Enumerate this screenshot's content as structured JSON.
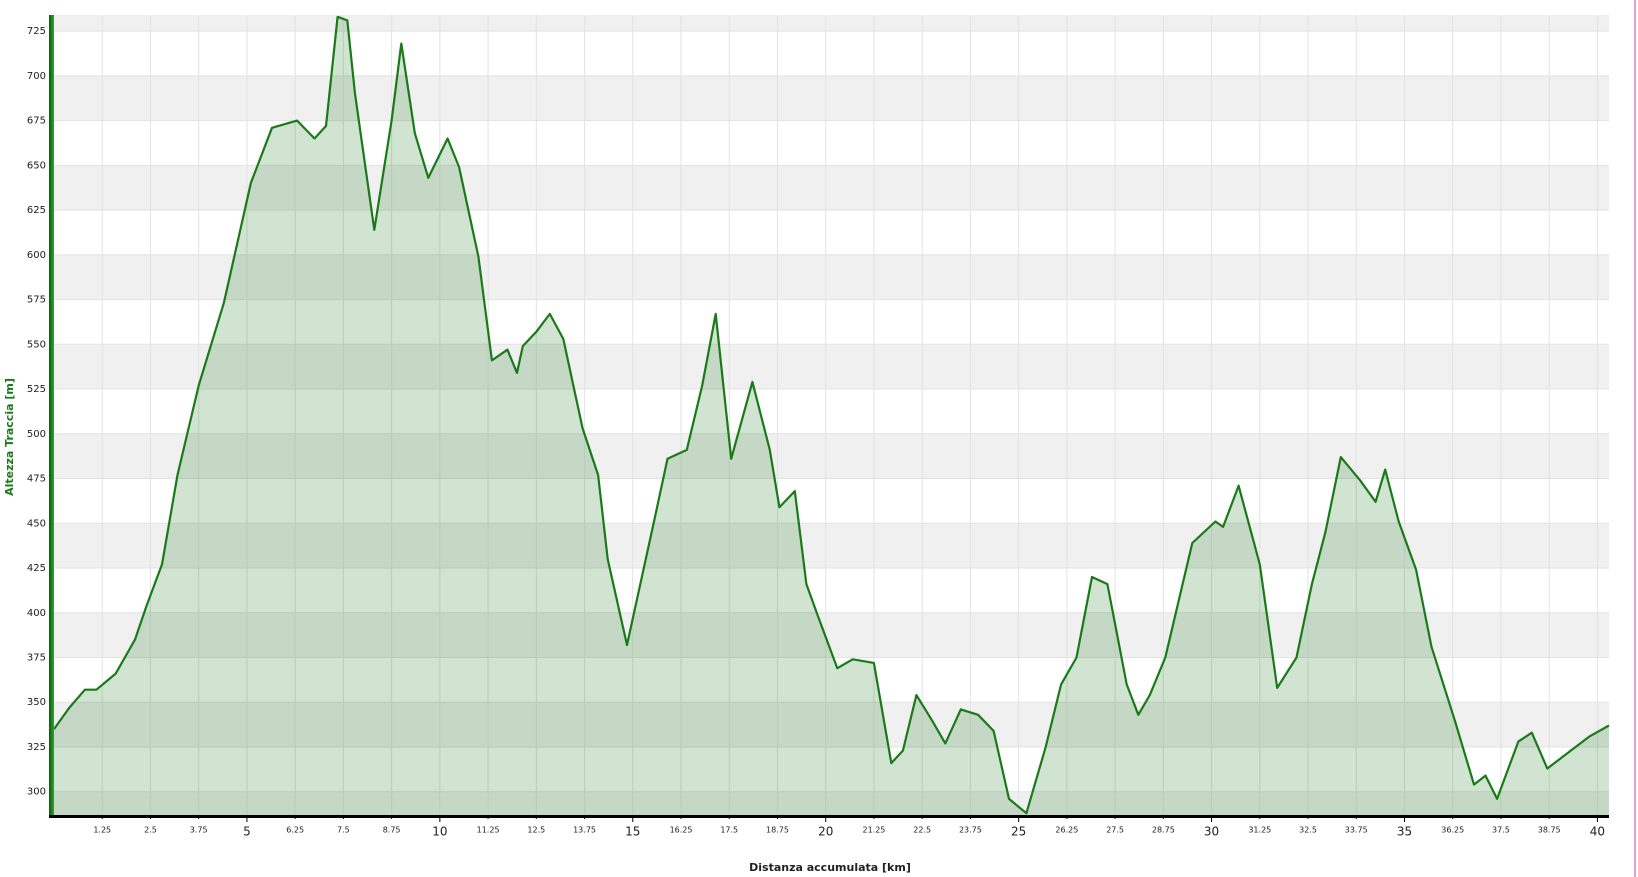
{
  "chart_data": {
    "type": "area",
    "x_label": "Distanza accumulata [km]",
    "y_label": "Altezza Traccia [m]",
    "x": [
      0,
      0.4,
      0.8,
      1.1,
      1.6,
      2.1,
      2.4,
      2.8,
      3.2,
      3.75,
      4.4,
      5.1,
      5.65,
      6.3,
      6.75,
      7.05,
      7.35,
      7.6,
      7.8,
      8.3,
      8.75,
      9.0,
      9.35,
      9.7,
      10.2,
      10.5,
      11.0,
      11.35,
      11.75,
      12.0,
      12.15,
      12.5,
      12.85,
      13.2,
      13.7,
      14.1,
      14.35,
      14.85,
      15.55,
      15.9,
      16.4,
      16.8,
      17.15,
      17.55,
      18.1,
      18.55,
      18.8,
      19.2,
      19.5,
      19.8,
      20.3,
      20.7,
      21.25,
      21.7,
      22.0,
      22.35,
      22.75,
      23.1,
      23.5,
      23.95,
      24.35,
      24.75,
      25.2,
      25.7,
      26.1,
      26.5,
      26.9,
      27.3,
      27.8,
      28.1,
      28.4,
      28.8,
      29.5,
      30.1,
      30.3,
      30.7,
      31.25,
      31.7,
      32.2,
      32.6,
      32.95,
      33.35,
      33.85,
      34.25,
      34.5,
      34.85,
      35.3,
      35.7,
      36.3,
      36.8,
      37.1,
      37.4,
      37.95,
      38.3,
      38.7,
      39.25,
      39.8,
      40.3
    ],
    "values": [
      335,
      347,
      357,
      357,
      366,
      385,
      404,
      427,
      477,
      527,
      573,
      640,
      671,
      675,
      665,
      672,
      733,
      731,
      690,
      614,
      675,
      718,
      668,
      643,
      665,
      649,
      599,
      541,
      547,
      534,
      549,
      557,
      567,
      553,
      503,
      477,
      430,
      382,
      451,
      486,
      491,
      527,
      567,
      486,
      529,
      491,
      459,
      468,
      416,
      398,
      369,
      374,
      372,
      316,
      323,
      354,
      340,
      327,
      346,
      343,
      334,
      296,
      288,
      325,
      360,
      375,
      420,
      416,
      360,
      343,
      354,
      375,
      439,
      451,
      448,
      471,
      427,
      358,
      375,
      416,
      445,
      487,
      474,
      462,
      480,
      451,
      424,
      381,
      340,
      304,
      309,
      296,
      328,
      333,
      313,
      322,
      331,
      337
    ],
    "color": "#1a7a1a",
    "xlim": [
      0,
      40.3
    ],
    "ylim": [
      287,
      734
    ],
    "xticks": [
      1.25,
      2.5,
      3.75,
      5,
      6.25,
      7.5,
      8.75,
      10,
      11.25,
      12.5,
      13.75,
      15,
      16.25,
      17.5,
      18.75,
      20,
      21.25,
      22.5,
      23.75,
      25,
      26.25,
      27.5,
      28.75,
      30,
      31.25,
      32.5,
      33.75,
      35,
      36.25,
      37.5,
      38.75,
      40
    ],
    "yticks": [
      300,
      325,
      350,
      375,
      400,
      425,
      450,
      475,
      500,
      525,
      550,
      575,
      600,
      625,
      650,
      675,
      700,
      725
    ],
    "grid": true
  }
}
